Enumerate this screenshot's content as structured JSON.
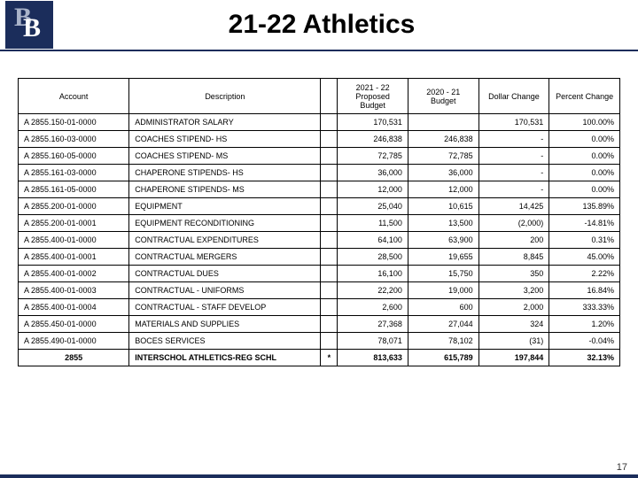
{
  "header": {
    "logo_letters": [
      "B",
      "B"
    ],
    "title": "21-22 Athletics"
  },
  "columns": {
    "account": "Account",
    "description": "Description",
    "star": "",
    "proposed": "2021 - 22 Proposed Budget",
    "prior": "2020 - 21 Budget",
    "dollar": "Dollar Change",
    "percent": "Percent Change"
  },
  "rows": [
    {
      "acct": "A 2855.150-01-0000",
      "desc": "ADMINISTRATOR SALARY",
      "star": "",
      "proposed": "170,531",
      "prior": "",
      "dollar": "170,531",
      "percent": "100.00%"
    },
    {
      "acct": "A 2855.160-03-0000",
      "desc": "COACHES STIPEND- HS",
      "star": "",
      "proposed": "246,838",
      "prior": "246,838",
      "dollar": "-",
      "percent": "0.00%"
    },
    {
      "acct": "A 2855.160-05-0000",
      "desc": "COACHES STIPEND- MS",
      "star": "",
      "proposed": "72,785",
      "prior": "72,785",
      "dollar": "-",
      "percent": "0.00%"
    },
    {
      "acct": "A 2855.161-03-0000",
      "desc": "CHAPERONE STIPENDS- HS",
      "star": "",
      "proposed": "36,000",
      "prior": "36,000",
      "dollar": "-",
      "percent": "0.00%"
    },
    {
      "acct": "A 2855.161-05-0000",
      "desc": "CHAPERONE STIPENDS- MS",
      "star": "",
      "proposed": "12,000",
      "prior": "12,000",
      "dollar": "-",
      "percent": "0.00%"
    },
    {
      "acct": "A 2855.200-01-0000",
      "desc": "EQUIPMENT",
      "star": "",
      "proposed": "25,040",
      "prior": "10,615",
      "dollar": "14,425",
      "percent": "135.89%"
    },
    {
      "acct": "A 2855.200-01-0001",
      "desc": "EQUIPMENT RECONDITIONING",
      "star": "",
      "proposed": "11,500",
      "prior": "13,500",
      "dollar": "(2,000)",
      "percent": "-14.81%"
    },
    {
      "acct": "A 2855.400-01-0000",
      "desc": "CONTRACTUAL EXPENDITURES",
      "star": "",
      "proposed": "64,100",
      "prior": "63,900",
      "dollar": "200",
      "percent": "0.31%"
    },
    {
      "acct": "A 2855.400-01-0001",
      "desc": "CONTRACTUAL MERGERS",
      "star": "",
      "proposed": "28,500",
      "prior": "19,655",
      "dollar": "8,845",
      "percent": "45.00%"
    },
    {
      "acct": "A 2855.400-01-0002",
      "desc": "CONTRACTUAL DUES",
      "star": "",
      "proposed": "16,100",
      "prior": "15,750",
      "dollar": "350",
      "percent": "2.22%"
    },
    {
      "acct": "A 2855.400-01-0003",
      "desc": "CONTRACTUAL - UNIFORMS",
      "star": "",
      "proposed": "22,200",
      "prior": "19,000",
      "dollar": "3,200",
      "percent": "16.84%"
    },
    {
      "acct": "A 2855.400-01-0004",
      "desc": "CONTRACTUAL - STAFF DEVELOP",
      "star": "",
      "proposed": "2,600",
      "prior": "600",
      "dollar": "2,000",
      "percent": "333.33%"
    },
    {
      "acct": "A 2855.450-01-0000",
      "desc": "MATERIALS AND SUPPLIES",
      "star": "",
      "proposed": "27,368",
      "prior": "27,044",
      "dollar": "324",
      "percent": "1.20%"
    },
    {
      "acct": "A 2855.490-01-0000",
      "desc": "BOCES SERVICES",
      "star": "",
      "proposed": "78,071",
      "prior": "78,102",
      "dollar": "(31)",
      "percent": "-0.04%"
    }
  ],
  "total": {
    "acct": "2855",
    "desc": "INTERSCHOL ATHLETICS-REG SCHL",
    "star": "*",
    "proposed": "813,633",
    "prior": "615,789",
    "dollar": "197,844",
    "percent": "32.13%"
  },
  "page_number": "17"
}
